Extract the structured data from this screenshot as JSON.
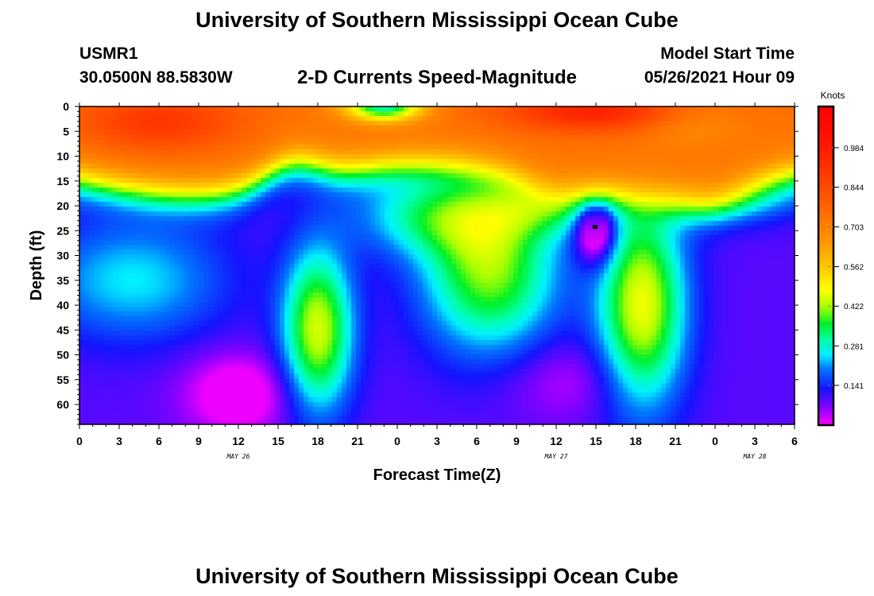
{
  "header": {
    "title": "University of Southern Mississippi Ocean Cube",
    "station_id": "USMR1",
    "station_coords": "30.0500N  88.5830W",
    "plot_title": "2-D Currents Speed-Magnitude",
    "model_start_label": "Model Start Time",
    "model_start_value": "05/26/2021 Hour 09"
  },
  "footer": {
    "title": "University of Southern Mississippi Ocean Cube"
  },
  "chart_data": {
    "type": "heatmap",
    "title": "2-D Currents Speed-Magnitude",
    "xlabel": "Forecast Time(Z)",
    "ylabel": "Depth (ft)",
    "x_range_hours": [
      0,
      54
    ],
    "y_range_ft": [
      0,
      64
    ],
    "y_inverted": true,
    "x_ticks": [
      "0",
      "3",
      "6",
      "9",
      "12",
      "15",
      "18",
      "21",
      "0",
      "3",
      "6",
      "9",
      "12",
      "15",
      "18",
      "21",
      "0",
      "3",
      "6"
    ],
    "y_ticks": [
      "0",
      "5",
      "10",
      "15",
      "20",
      "25",
      "30",
      "35",
      "40",
      "45",
      "50",
      "55",
      "60"
    ],
    "date_labels": [
      {
        "text": "MAY 26",
        "at_hour": 12
      },
      {
        "text": "MAY 27",
        "at_hour": 36
      },
      {
        "text": "MAY 28",
        "at_hour": 51
      }
    ],
    "colorbar": {
      "unit": "Knots",
      "range": [
        0.0,
        1.13
      ],
      "tick_labels": [
        "0.984",
        "0.844",
        "0.703",
        "0.562",
        "0.422",
        "0.281",
        "0.141"
      ],
      "tick_values": [
        0.984,
        0.844,
        0.703,
        0.562,
        0.422,
        0.281,
        0.141
      ]
    },
    "features": [
      {
        "region": "surface layer 0-15 ft, all times",
        "speed": 0.75
      },
      {
        "region": "surface hotspot near hour 6, 0-8 ft",
        "speed": 0.9
      },
      {
        "region": "surface hotspot near hour 39, 0-5 ft",
        "speed": 0.98
      },
      {
        "region": "surface low near hour 23, 0-3 ft",
        "speed": 0.3
      },
      {
        "region": "mid-depth band 20-40 ft, hours 0-9",
        "speed": 0.25
      },
      {
        "region": "core near hour 18, depth 45 ft",
        "speed": 0.42
      },
      {
        "region": "core near hour 32, depth 35 ft",
        "speed": 0.4
      },
      {
        "region": "core near hour 43, depth 40 ft",
        "speed": 0.45
      },
      {
        "region": "minimum near hour 39, depth 24 ft",
        "speed": 0.03
      },
      {
        "region": "deep minimum near hour 12, depth 58 ft",
        "speed": 0.03
      }
    ]
  }
}
